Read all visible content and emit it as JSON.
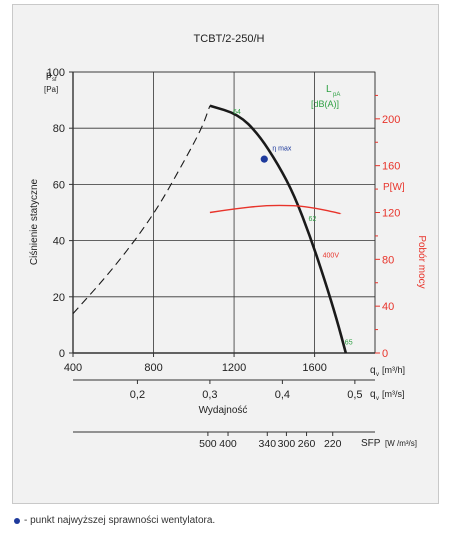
{
  "colors": {
    "curve": "#1a1a1a",
    "power": "#e8342b",
    "noise": "#2ea043",
    "eta": "#1e3a9c",
    "text": "#222222",
    "grid": "#333333"
  },
  "chart_data": {
    "type": "line",
    "title": "TCBT/2-250/H",
    "ylabel": "Ciśnienie statyczne",
    "y_unit_symbol": "p",
    "y_unit_sub": "sf",
    "y_unit": "[Pa]",
    "ylim": [
      0,
      100
    ],
    "yticks": [
      0,
      20,
      40,
      60,
      80,
      100
    ],
    "x_unit_symbol": "q",
    "x_unit_sub": "v",
    "x_unit": "[m³/h]",
    "xlim": [
      400,
      1900
    ],
    "xticks": [
      400,
      800,
      1200,
      1600
    ],
    "x2_unit": "[m³/s]",
    "x2_ticks": [
      0.2,
      0.3,
      0.4,
      0.5
    ],
    "x2_tick_labels": [
      "0,2",
      "0,3",
      "0,4",
      "0,5"
    ],
    "xlabel": "Wydajność",
    "sfp_label": "SFP",
    "sfp_unit": "[W /m³/s]",
    "sfp_ticks": [
      {
        "x": 1070,
        "label": "500"
      },
      {
        "x": 1170,
        "label": "400"
      },
      {
        "x": 1365,
        "label": "340"
      },
      {
        "x": 1460,
        "label": "300"
      },
      {
        "x": 1560,
        "label": "260"
      },
      {
        "x": 1690,
        "label": "220"
      }
    ],
    "right_ylabel": "Pobór mocy",
    "right_unit": "P[W]",
    "right_ylim": [
      0,
      240
    ],
    "right_yticks": [
      0,
      40,
      80,
      120,
      160,
      200
    ],
    "noise_unit_symbol": "L",
    "noise_unit_sub": "pA",
    "noise_unit": "[dB(A)]",
    "series": [
      {
        "role": "pressure-dashed",
        "style": "dashed",
        "x": [
          400,
          600,
          800,
          950,
          1040,
          1080
        ],
        "y": [
          14,
          30,
          49,
          68,
          80,
          88
        ]
      },
      {
        "role": "pressure-solid",
        "x": [
          1080,
          1220,
          1320,
          1420,
          1500,
          1580,
          1650,
          1710,
          1755
        ],
        "y": [
          88,
          85,
          78,
          67,
          56,
          41,
          26,
          12,
          0
        ]
      },
      {
        "role": "power",
        "axis": "right",
        "x": [
          1080,
          1200,
          1350,
          1500,
          1600,
          1730
        ],
        "y": [
          120,
          123,
          126,
          126,
          124,
          119
        ]
      }
    ],
    "annotations": [
      {
        "text": "64",
        "x": 1195,
        "y": 85,
        "color": "noise"
      },
      {
        "text": "62",
        "x": 1570,
        "y": 47,
        "color": "noise"
      },
      {
        "text": "65",
        "x": 1750,
        "y": 3,
        "color": "noise"
      },
      {
        "text": "400V",
        "x": 1640,
        "y": 34,
        "color": "power"
      },
      {
        "text": "η max",
        "x": 1390,
        "y": 72,
        "color": "eta"
      }
    ],
    "eta_point": {
      "x": 1350,
      "y": 69
    }
  },
  "footnote": "- punkt najwyższej sprawności wentylatora."
}
